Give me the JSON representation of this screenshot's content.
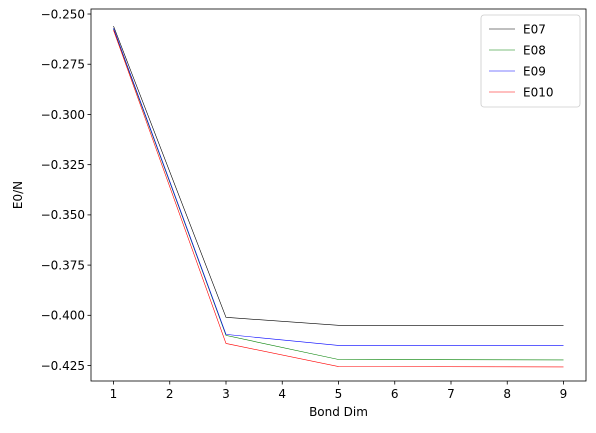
{
  "chart_data": {
    "type": "line",
    "title": "",
    "xlabel": "Bond Dim",
    "ylabel": "E0/N",
    "xlim": [
      0.6,
      9.4
    ],
    "ylim": [
      -0.4327,
      -0.2475
    ],
    "xticks": [
      1,
      2,
      3,
      4,
      5,
      6,
      7,
      8,
      9
    ],
    "yticks": [
      -0.425,
      -0.4,
      -0.375,
      -0.35,
      -0.325,
      -0.3,
      -0.275,
      -0.25
    ],
    "ytick_labels": [
      "−0.425",
      "−0.400",
      "−0.375",
      "−0.350",
      "−0.325",
      "−0.300",
      "−0.275",
      "−0.250"
    ],
    "grid": false,
    "legend_position": "top-right",
    "x": [
      1,
      3,
      5,
      9
    ],
    "series": [
      {
        "name": "E07",
        "color": "#000000",
        "values": [
          -0.256,
          -0.401,
          -0.405,
          -0.405
        ]
      },
      {
        "name": "E08",
        "color": "#008000",
        "values": [
          -0.2575,
          -0.41,
          -0.422,
          -0.4222
        ]
      },
      {
        "name": "E09",
        "color": "#0000ff",
        "values": [
          -0.257,
          -0.4095,
          -0.415,
          -0.415
        ]
      },
      {
        "name": "E010",
        "color": "#ff0000",
        "values": [
          -0.258,
          -0.414,
          -0.4255,
          -0.4257
        ]
      }
    ]
  }
}
